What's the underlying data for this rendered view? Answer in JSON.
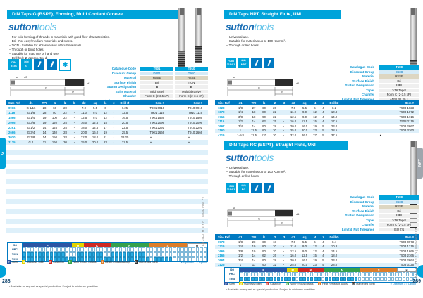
{
  "watermark": "KL-TECH s.r.o | www.klte.cz",
  "drawing": {
    "l1": "l1",
    "l2": "l2",
    "d1": "d1",
    "d2": "d2",
    "sq": "sq"
  },
  "footnote": "• Available on request as special production. Subject to minimum quantities.",
  "legend": {
    "items": [
      {
        "letter": "P",
        "color": "#2B56A4",
        "label": "Steel"
      },
      {
        "letter": "M",
        "color": "#E3D400",
        "label": "Stainless Steel"
      },
      {
        "letter": "K",
        "color": "#CE2A24",
        "label": "Cast Iron"
      },
      {
        "letter": "N",
        "color": "#35A14C",
        "label": "Non Ferrous Metals"
      },
      {
        "letter": "S",
        "color": "#DD7E2B",
        "label": "Heat Resistant Alloys"
      },
      {
        "letter": "H",
        "color": "#333333",
        "label": "Hardened Steel"
      }
    ],
    "note": "● Optimum / ○ Option"
  },
  "left_page": {
    "page_number": "288",
    "edge_tab": "G",
    "section": {
      "title_prefix": "DIN Taps",
      "title_suffix": " G (BSPF), Forming, Multi Coolant Groove",
      "logo_part1": "sutton",
      "logo_part2": "tools",
      "bullets": [
        "For cold forming of threads in materials with good flow characteristics.",
        "Bri - For easy/medium materials and steels.",
        "TiCN - Suitable for abrasive and difficult materials.",
        "Through or blind holes.",
        "Suitable for machine or hand use.",
        "Drill hole Ø approx. 5 x d."
      ],
      "badges": {
        "din_line1": "DIN",
        "din_line2": "5156",
        "thread_label": "G"
      },
      "spec": {
        "labels": [
          "Catalogue Code",
          "Discount Group",
          "Material",
          "Surface Finish",
          "Sutton Designation",
          "Suits Material",
          "Chamfer",
          "Limit & Nut Tolerance"
        ],
        "columns": [
          {
            "values": [
              "T901",
              "D901",
              "HSSE",
              "Bri",
              "B",
              "Mild Steel",
              "Form C (2-3.5 xP)",
              "ISO 228"
            ]
          },
          {
            "values": [
              "T910",
              "D910",
              "HSSE",
              "TiCN",
              "B",
              "Multi/Abrasive",
              "Form C (2-3.5 xP)",
              "ISO 228"
            ]
          }
        ]
      },
      "table": {
        "headers": [
          "Size Ref",
          "d1",
          "TPI",
          "l1",
          "l2",
          "l3",
          "d2",
          "sq",
          "l4",
          "z",
          "Drill Ø",
          "Item #",
          "Item #"
        ],
        "rows": [
          [
            "0916",
            "G 1/16",
            "28",
            "60",
            "20",
            "-",
            "7.0",
            "5.5",
            "6",
            "-",
            "6.25",
            "T901 0916",
            "T910 0916"
          ],
          [
            "1116",
            "G 1/8",
            "28",
            "80",
            "22",
            "-",
            "11.0",
            "9.0",
            "12",
            "-",
            "12.5",
            "T901 1116",
            "T910 1116"
          ],
          [
            "1566",
            "G 1/4",
            "19",
            "100",
            "22",
            "-",
            "12.5",
            "9.0",
            "12",
            "-",
            "16.5",
            "T901 1566",
            "T910 1566"
          ],
          [
            "2096",
            "G 3/8",
            "19",
            "120",
            "25",
            "-",
            "16.0",
            "12.5",
            "15",
            "-",
            "20.5",
            "T901 2096",
            "T910 2096"
          ],
          [
            "2291",
            "G 1/2",
            "14",
            "125",
            "25",
            "-",
            "18.0",
            "14.5",
            "17",
            "-",
            "22.5",
            "T901 2291",
            "T910 2291"
          ],
          [
            "2666",
            "G 3/4",
            "14",
            "140",
            "28",
            "-",
            "20.0",
            "16.0",
            "19",
            "-",
            "25.5",
            "T901 2666",
            "T910 2666"
          ],
          [
            "3020",
            "G 7/8",
            "14",
            "150",
            "28",
            "-",
            "22.0",
            "18.0",
            "21",
            "-",
            "28.25",
            "•",
            "•"
          ],
          [
            "3125",
            "G 1",
            "11",
            "160",
            "30",
            "-",
            "25.0",
            "20.0",
            "23",
            "-",
            "32.5",
            "•",
            "•"
          ]
        ]
      }
    },
    "chart": {
      "corner": "ISO",
      "groups": [
        {
          "letter": "P",
          "color": "#2B56A4",
          "cells": 13
        },
        {
          "letter": "M",
          "color": "#E3D400",
          "cells": 3
        },
        {
          "letter": "K",
          "color": "#CE2A24",
          "cells": 7
        },
        {
          "letter": "N",
          "color": "#35A14C",
          "cells": 10
        },
        {
          "letter": "S",
          "color": "#DD7E2B",
          "cells": 10
        },
        {
          "letter": "H",
          "color": "#FFFFFF",
          "cells": 5
        }
      ],
      "rows": [
        {
          "label": "HRC"
        },
        {
          "label": "T901",
          "pattern": "111111111110001111111001111111110000000000000000"
        },
        {
          "label": "T910",
          "pattern": "111111111111111111111111111111111011111000000000"
        }
      ]
    }
  },
  "right_page": {
    "page_number": "289",
    "edge_tab": "NPT",
    "section_npt": {
      "title_prefix": "DIN Taps",
      "title_suffix": " NPT, Straight Flute, UNI",
      "logo_part1": "sutton",
      "logo_part2": "tools",
      "bullets": [
        "Universal use.",
        "Suitable for materials up to 100 Kp/mm².",
        "Through drilled holes."
      ],
      "badges": {
        "din_line1": "~DIN",
        "din_line2": "2184-1",
        "thread_label": "NPT"
      },
      "spec": {
        "labels": [
          "Catalogue Code",
          "Discount Group",
          "Material",
          "Surface Finish",
          "Sutton Designation",
          "Taper",
          "Chamfer",
          "Limit & Nut Tolerance"
        ],
        "columns": [
          {
            "values": [
              "T508",
              "D508",
              "HSSE",
              "Bri",
              "UNI",
              "1/16 Taper",
              "Form C (2-3.5 xP)",
              "ANSI B1.20.1"
            ]
          }
        ]
      },
      "table": {
        "headers": [
          "Size Ref",
          "d1",
          "TPI",
          "l1",
          "l2",
          "l3",
          "d2",
          "sq",
          "l4",
          "z",
          "Drill Ø",
          "Item #"
        ],
        "rows": [
          [
            "1023",
            "1/8",
            "27",
            "60",
            "20",
            "-",
            "7.0",
            "5.5",
            "6",
            "4",
            "8.2",
            "T508 1023"
          ],
          [
            "1072",
            "1/4",
            "18",
            "80",
            "22",
            "-",
            "11.0",
            "9.0",
            "12",
            "4",
            "10.8",
            "T508 1072"
          ],
          [
            "1716",
            "3/8",
            "18",
            "90",
            "22",
            "-",
            "12.5",
            "9.0",
            "12",
            "4",
            "14.0",
            "T508 1716"
          ],
          [
            "2116",
            "1/2",
            "14",
            "62",
            "25",
            "-",
            "16.0",
            "12.5",
            "15",
            "4",
            "17.5",
            "T508 2116"
          ],
          [
            "2667",
            "3/4",
            "14",
            "90",
            "28",
            "-",
            "20.0",
            "16.0",
            "19",
            "5",
            "23.0",
            "T508 2667"
          ],
          [
            "3160",
            "1",
            "11.5",
            "90",
            "30",
            "-",
            "25.0",
            "20.0",
            "23",
            "5",
            "28.5",
            "T508 3160"
          ],
          [
            "4216",
            "1-1/4",
            "11.5",
            "120",
            "30",
            "-",
            "32.0",
            "26.0",
            "27",
            "5",
            "37.5",
            "•"
          ]
        ]
      }
    },
    "section_rc": {
      "title_prefix": "DIN Taps",
      "title_suffix": " RC (BSPT), Straight Flute, UNI",
      "logo_part1": "sutton",
      "logo_part2": "tools",
      "bullets": [
        "Universal use.",
        "Suitable for materials up to 100 Kp/mm².",
        "Through drilled holes."
      ],
      "badges": {
        "din_line1": "~DIN",
        "din_line2": "2184-1",
        "thread_label": "RC"
      },
      "spec": {
        "labels": [
          "Catalogue Code",
          "Discount Group",
          "Material",
          "Surface Finish",
          "Sutton Designation",
          "Taper",
          "Chamfer",
          "Limit & Nut Tolerance"
        ],
        "columns": [
          {
            "values": [
              "T508",
              "D508",
              "HSSE",
              "Bri",
              "UNI",
              "1/16 Taper",
              "Form C (2-3.5 xP)",
              "ISO 7/1"
            ]
          }
        ]
      },
      "table": {
        "headers": [
          "Size Ref",
          "d1",
          "TPI",
          "l1",
          "l2",
          "l3",
          "d2",
          "sq",
          "l4",
          "z",
          "Drill Ø",
          "Item #"
        ],
        "rows": [
          [
            "0973",
            "1/8",
            "28",
            "60",
            "18",
            "-",
            "7.0",
            "5.5",
            "6",
            "4",
            "8.4",
            "T508 0973"
          ],
          [
            "1216",
            "1/4",
            "19",
            "80",
            "20",
            "-",
            "11.0",
            "9.0",
            "12",
            "4",
            "10.8",
            "T508 1216"
          ],
          [
            "1666",
            "3/8",
            "19",
            "90",
            "20",
            "-",
            "12.5",
            "9.0",
            "12",
            "4",
            "14.5",
            "T508 1666"
          ],
          [
            "2166",
            "1/2",
            "14",
            "62",
            "26",
            "-",
            "16.0",
            "12.5",
            "15",
            "4",
            "18.0",
            "T508 2166"
          ],
          [
            "2664",
            "3/4",
            "14",
            "90",
            "28",
            "-",
            "20.0",
            "16.0",
            "19",
            "5",
            "23.0",
            "T508 2664"
          ],
          [
            "3125",
            "1",
            "11",
            "90",
            "32",
            "-",
            "25.0",
            "20.0",
            "23",
            "5",
            "28.0",
            "T508 3125"
          ]
        ]
      }
    },
    "chart": {
      "corner": "ISO",
      "groups": [
        {
          "letter": "P",
          "color": "#2B56A4",
          "cells": 13
        },
        {
          "letter": "M",
          "color": "#E3D400",
          "cells": 3
        },
        {
          "letter": "K",
          "color": "#CE2A24",
          "cells": 7
        },
        {
          "letter": "N",
          "color": "#35A14C",
          "cells": 10
        },
        {
          "letter": "S",
          "color": "#DD7E2B",
          "cells": 10
        },
        {
          "letter": "H",
          "color": "#FFFFFF",
          "cells": 5
        }
      ],
      "rows": [
        {
          "label": "HRC"
        },
        {
          "label": "T508",
          "pattern": "111111111111111011111101111111110000000000000000"
        }
      ]
    }
  }
}
